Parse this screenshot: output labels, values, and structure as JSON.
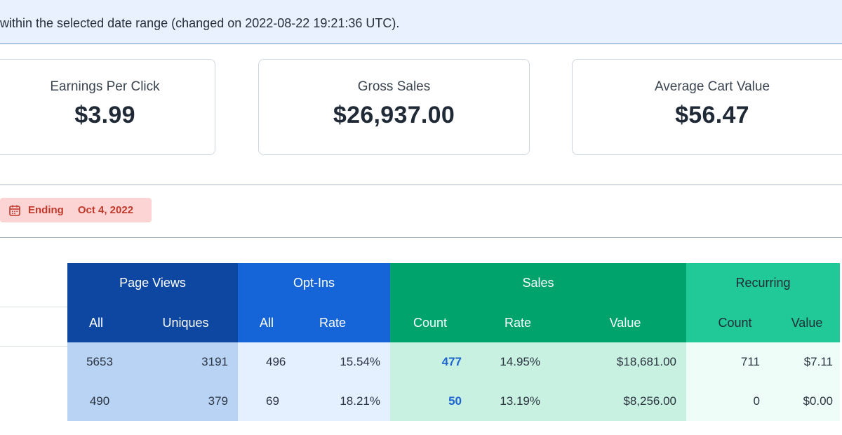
{
  "notice": {
    "text": "within the selected date range (changed on 2022-08-22 19:21:36 UTC)."
  },
  "cards": [
    {
      "label": "Earnings Per Click",
      "value": "$3.99"
    },
    {
      "label": "Gross Sales",
      "value": "$26,937.00"
    },
    {
      "label": "Average Cart Value",
      "value": "$56.47"
    }
  ],
  "badge": {
    "icon": "calendar-icon",
    "label": "Ending",
    "date": "Oct 4, 2022",
    "color": "#c0392b",
    "background": "#fdd4d4"
  },
  "table": {
    "groups": {
      "page_views": "Page Views",
      "opt_ins": "Opt-Ins",
      "sales": "Sales",
      "recurring": "Recurring"
    },
    "columns": {
      "pv_all": "All",
      "pv_uniques": "Uniques",
      "oi_all": "All",
      "oi_rate": "Rate",
      "sales_count": "Count",
      "sales_rate": "Rate",
      "sales_value": "Value",
      "rec_count": "Count",
      "rec_value": "Value"
    },
    "rows": [
      {
        "pv_all": "5653",
        "pv_uniques": "3191",
        "oi_all": "496",
        "oi_rate": "15.54%",
        "sales_count": "477",
        "sales_rate": "14.95%",
        "sales_value": "$18,681.00",
        "rec_count": "711",
        "rec_value": "$7.11"
      },
      {
        "pv_all": "490",
        "pv_uniques": "379",
        "oi_all": "69",
        "oi_rate": "18.21%",
        "sales_count": "50",
        "sales_rate": "13.19%",
        "sales_value": "$8,256.00",
        "rec_count": "0",
        "rec_value": "$0.00"
      }
    ],
    "colors": {
      "page_views": "#0d47a1",
      "opt_ins": "#1565d8",
      "sales": "#00a36c",
      "recurring": "#20c997"
    }
  }
}
